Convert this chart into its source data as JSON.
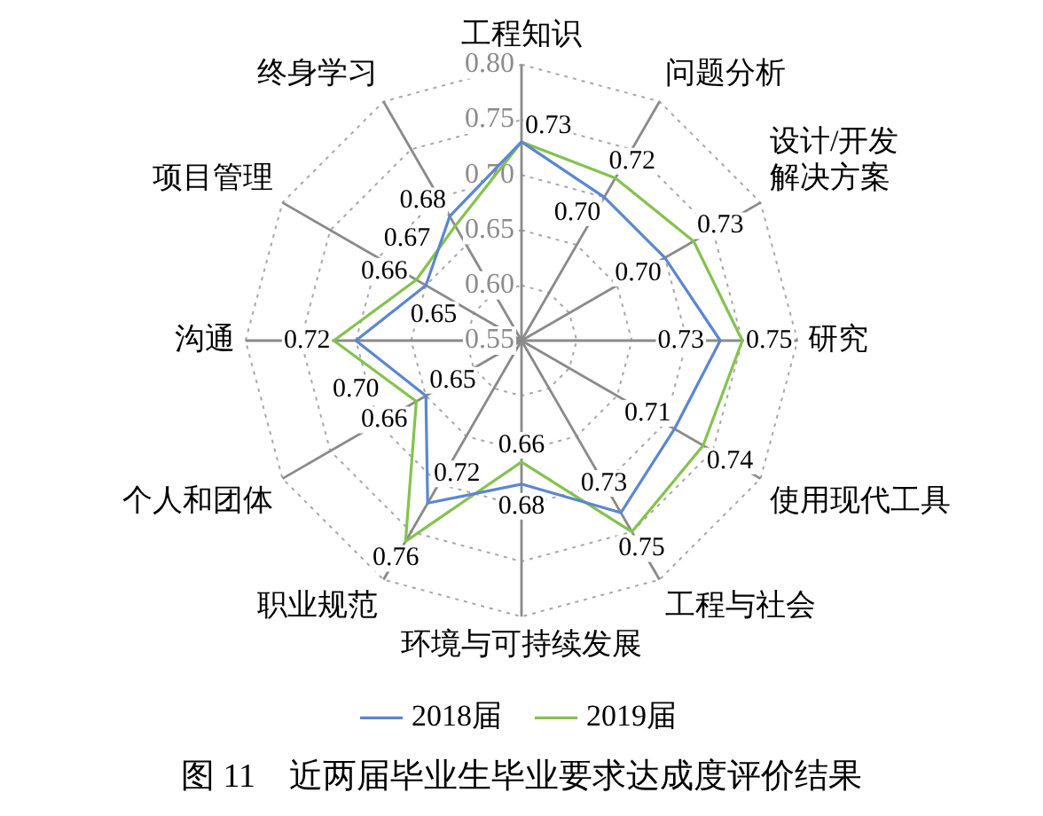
{
  "chart_data": {
    "type": "radar",
    "title": "图 11　近两届毕业生毕业要求达成度评价结果",
    "categories": [
      "工程知识",
      "问题分析",
      "设计/开发解决方案",
      "研究",
      "使用现代工具",
      "工程与社会",
      "环境与可持续发展",
      "职业规范",
      "个人和团体",
      "沟通",
      "项目管理",
      "终身学习"
    ],
    "series": [
      {
        "name": "2018届",
        "color": "#5b87d0",
        "values": [
          0.73,
          0.7,
          0.7,
          0.73,
          0.71,
          0.73,
          0.68,
          0.72,
          0.65,
          0.7,
          0.65,
          0.68
        ],
        "value_labels": [
          "0.73",
          "0.70",
          "0.70",
          "0.73",
          "0.71",
          "0.73",
          "0.68",
          "0.72",
          "0.65",
          "0.70",
          "0.65",
          "0.68"
        ]
      },
      {
        "name": "2019届",
        "color": "#85c24e",
        "values": [
          0.73,
          0.72,
          0.73,
          0.75,
          0.74,
          0.75,
          0.66,
          0.76,
          0.66,
          0.72,
          0.66,
          0.67
        ],
        "value_labels": [
          null,
          "0.72",
          "0.73",
          "0.75",
          "0.74",
          "0.75",
          "0.66",
          "0.76",
          "0.66",
          "0.72",
          "0.66",
          "0.67"
        ]
      }
    ],
    "ylim": [
      0.55,
      0.8
    ],
    "yticks": [
      0.55,
      {
        "value": 0.6,
        "label": "0.60"
      },
      0.65,
      {
        "value": 0.7,
        "label": "0.70"
      },
      0.75,
      {
        "value": 0.8,
        "label": "0.80"
      }
    ],
    "grid": true,
    "legend": "bottom"
  }
}
